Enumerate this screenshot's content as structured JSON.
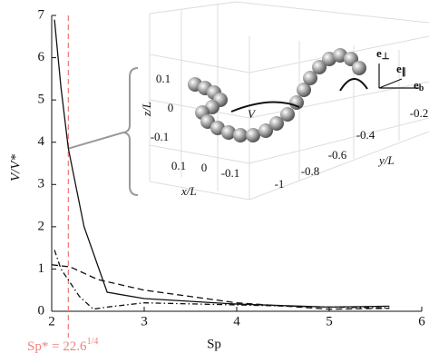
{
  "chart_data": {
    "type": "line",
    "x_label": "Sp",
    "y_label": "V/V*",
    "xlim": [
      2,
      6
    ],
    "ylim": [
      0,
      7
    ],
    "xticks": [
      2,
      3,
      4,
      5,
      6
    ],
    "yticks": [
      0,
      1,
      2,
      3,
      4,
      5,
      6,
      7
    ],
    "grid": false,
    "series": [
      {
        "name": "solid",
        "color": "#111",
        "dash": "none",
        "x": [
          2.03,
          2.1,
          2.18,
          2.35,
          2.6,
          3,
          4,
          5,
          5.65
        ],
        "values": [
          6.9,
          5.3,
          3.85,
          2.0,
          0.45,
          0.3,
          0.17,
          0.1,
          0.12
        ]
      },
      {
        "name": "dashed",
        "color": "#111",
        "dash": "7 4",
        "x": [
          2.0,
          2.2,
          2.5,
          3,
          4,
          5,
          5.65
        ],
        "values": [
          1.1,
          1.05,
          0.75,
          0.5,
          0.2,
          0.05,
          0.07
        ]
      },
      {
        "name": "dash-dot",
        "color": "#111",
        "dash": "6 3 1.5 3",
        "x": [
          2.03,
          2.1,
          2.3,
          2.45,
          2.6,
          3,
          4,
          5,
          5.65
        ],
        "values": [
          1.45,
          1.0,
          0.35,
          0.05,
          0.1,
          0.2,
          0.15,
          0.1,
          0.08
        ]
      }
    ],
    "marker_x": 2.18,
    "marker_color": "#f08080",
    "annotation": {
      "text": "Sp* = 22.6",
      "sup": "1/4"
    },
    "inset": {
      "z_label": "z/L",
      "y_label": "y/L",
      "x_label": "x/L",
      "z_ticks": [
        "0.1",
        "0",
        "-0.1"
      ],
      "x_ticks": [
        "0.1",
        "0",
        "-0.1"
      ],
      "y_ticks": [
        "-1",
        "-0.8",
        "-0.6",
        "-0.4",
        "-0.2"
      ],
      "velocity": "V",
      "e_perp": {
        "base": "e",
        "sub": "⊥"
      },
      "e_par": {
        "base": "e",
        "sub": "∥"
      },
      "e_b": {
        "base": "e",
        "sub": "b"
      }
    }
  }
}
